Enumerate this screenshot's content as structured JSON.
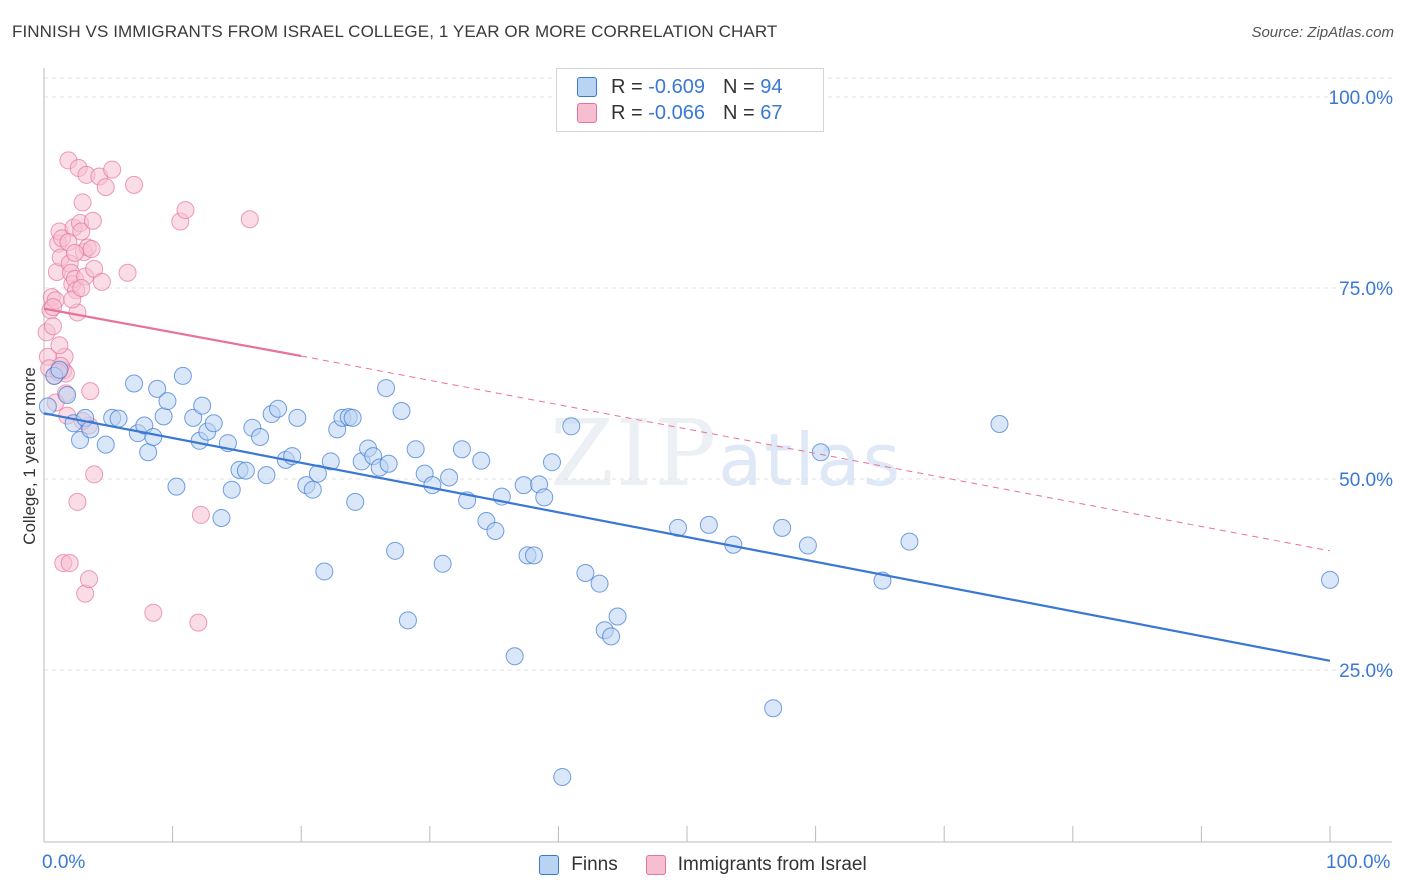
{
  "title": "FINNISH VS IMMIGRANTS FROM ISRAEL COLLEGE, 1 YEAR OR MORE CORRELATION CHART",
  "source": "Source: ZipAtlas.com",
  "watermark": {
    "part1": "ZIP",
    "part2": "atlas"
  },
  "colors": {
    "blue": "#3a78d4",
    "blue_fill": "#b9d3f3",
    "pink": "#e7739a",
    "pink_fill": "#f6bfd1",
    "grid": "#e2e2e2"
  },
  "legend": {
    "rows": [
      {
        "r_label": "R = ",
        "r_value": "-0.609",
        "n_label": "N = ",
        "n_value": "94"
      },
      {
        "r_label": "R = ",
        "r_value": "-0.066",
        "n_label": "N = ",
        "n_value": "67"
      }
    ]
  },
  "bottom_legend": {
    "finns": "Finns",
    "israel": "Immigrants from Israel"
  },
  "chart_data": {
    "type": "scatter",
    "title": "FINNISH VS IMMIGRANTS FROM ISRAEL COLLEGE, 1 YEAR OR MORE CORRELATION CHART",
    "xlabel": "",
    "ylabel": "College, 1 year or more",
    "xlim": [
      0,
      100
    ],
    "ylim": [
      0,
      102
    ],
    "x_tick_labels": [
      "0.0%",
      "100.0%"
    ],
    "y_ticks": [
      25,
      50,
      75,
      100
    ],
    "y_tick_labels": [
      "25.0%",
      "50.0%",
      "75.0%",
      "100.0%"
    ],
    "grid": true,
    "series": [
      {
        "name": "Finns",
        "color": "#3a78d4",
        "trend": {
          "x0": 0,
          "y0": 58.6,
          "x1": 100,
          "y1": 26.2
        },
        "points": [
          [
            0.3,
            59.5
          ],
          [
            0.8,
            63.5
          ],
          [
            1.2,
            64.3
          ],
          [
            1.8,
            61.0
          ],
          [
            2.3,
            57.3
          ],
          [
            2.8,
            55.1
          ],
          [
            3.2,
            58.0
          ],
          [
            3.6,
            56.5
          ],
          [
            4.8,
            54.5
          ],
          [
            5.3,
            58.0
          ],
          [
            5.8,
            57.9
          ],
          [
            7.0,
            62.5
          ],
          [
            7.3,
            56.0
          ],
          [
            7.8,
            57.0
          ],
          [
            8.1,
            53.5
          ],
          [
            8.5,
            55.5
          ],
          [
            8.8,
            61.8
          ],
          [
            9.3,
            58.2
          ],
          [
            9.6,
            60.2
          ],
          [
            10.3,
            49.0
          ],
          [
            10.8,
            63.5
          ],
          [
            11.6,
            58.0
          ],
          [
            12.1,
            55.0
          ],
          [
            12.3,
            59.6
          ],
          [
            12.7,
            56.2
          ],
          [
            13.2,
            57.3
          ],
          [
            13.8,
            44.9
          ],
          [
            14.3,
            54.7
          ],
          [
            14.6,
            48.6
          ],
          [
            15.2,
            51.2
          ],
          [
            15.7,
            51.1
          ],
          [
            16.2,
            56.7
          ],
          [
            16.8,
            55.5
          ],
          [
            17.3,
            50.5
          ],
          [
            17.7,
            58.5
          ],
          [
            18.2,
            59.2
          ],
          [
            18.8,
            52.5
          ],
          [
            19.3,
            53.0
          ],
          [
            19.7,
            58.0
          ],
          [
            20.4,
            49.2
          ],
          [
            20.9,
            48.6
          ],
          [
            21.3,
            50.7
          ],
          [
            21.8,
            37.9
          ],
          [
            22.3,
            52.3
          ],
          [
            22.8,
            56.5
          ],
          [
            23.2,
            58.0
          ],
          [
            23.7,
            58.1
          ],
          [
            24.2,
            47.0
          ],
          [
            24.7,
            52.3
          ],
          [
            25.2,
            54.0
          ],
          [
            25.6,
            53.0
          ],
          [
            26.1,
            51.5
          ],
          [
            26.6,
            61.9
          ],
          [
            27.3,
            40.6
          ],
          [
            27.8,
            58.9
          ],
          [
            28.3,
            31.5
          ],
          [
            28.9,
            53.9
          ],
          [
            29.6,
            50.7
          ],
          [
            30.2,
            49.2
          ],
          [
            31.0,
            38.9
          ],
          [
            31.5,
            50.2
          ],
          [
            32.5,
            53.9
          ],
          [
            32.9,
            47.2
          ],
          [
            34.0,
            52.4
          ],
          [
            34.4,
            44.5
          ],
          [
            35.1,
            43.2
          ],
          [
            35.6,
            47.7
          ],
          [
            36.6,
            26.8
          ],
          [
            37.3,
            49.2
          ],
          [
            37.6,
            40.0
          ],
          [
            38.1,
            40.0
          ],
          [
            38.5,
            49.3
          ],
          [
            38.9,
            47.6
          ],
          [
            39.5,
            52.2
          ],
          [
            40.3,
            11.0
          ],
          [
            41.0,
            56.9
          ],
          [
            42.1,
            37.7
          ],
          [
            43.2,
            36.3
          ],
          [
            43.6,
            30.2
          ],
          [
            44.1,
            29.4
          ],
          [
            44.6,
            32.0
          ],
          [
            49.3,
            43.6
          ],
          [
            51.7,
            44.0
          ],
          [
            53.6,
            41.4
          ],
          [
            56.7,
            20.0
          ],
          [
            57.4,
            43.6
          ],
          [
            59.4,
            41.3
          ],
          [
            60.4,
            53.5
          ],
          [
            65.2,
            36.7
          ],
          [
            67.3,
            41.8
          ],
          [
            74.3,
            57.2
          ],
          [
            100.0,
            36.8
          ],
          [
            24.0,
            58.0
          ],
          [
            26.8,
            52.0
          ]
        ]
      },
      {
        "name": "Immigrants from Israel",
        "color": "#e7739a",
        "trend": {
          "x0": 0,
          "y0": 72.3,
          "x1": 20,
          "y1": 66.1,
          "dash_x1": 100,
          "dash_y1": 40.6
        },
        "points": [
          [
            0.2,
            69.2
          ],
          [
            0.3,
            66.0
          ],
          [
            0.5,
            72.1
          ],
          [
            0.6,
            73.8
          ],
          [
            0.7,
            70.0
          ],
          [
            0.8,
            63.5
          ],
          [
            0.9,
            73.4
          ],
          [
            1.0,
            77.1
          ],
          [
            1.1,
            80.8
          ],
          [
            1.2,
            82.4
          ],
          [
            1.3,
            79.0
          ],
          [
            1.4,
            81.5
          ],
          [
            1.5,
            64.2
          ],
          [
            1.6,
            66.0
          ],
          [
            1.7,
            63.8
          ],
          [
            1.8,
            58.3
          ],
          [
            1.9,
            91.7
          ],
          [
            2.0,
            78.2
          ],
          [
            2.1,
            77.0
          ],
          [
            2.2,
            75.5
          ],
          [
            2.3,
            82.9
          ],
          [
            2.4,
            76.2
          ],
          [
            2.5,
            74.7
          ],
          [
            2.6,
            71.8
          ],
          [
            2.7,
            90.7
          ],
          [
            2.8,
            83.5
          ],
          [
            2.9,
            82.4
          ],
          [
            3.0,
            86.2
          ],
          [
            3.1,
            79.7
          ],
          [
            3.2,
            76.5
          ],
          [
            3.3,
            89.8
          ],
          [
            3.4,
            80.3
          ],
          [
            3.5,
            57.0
          ],
          [
            3.6,
            61.5
          ],
          [
            3.7,
            80.1
          ],
          [
            3.8,
            83.8
          ],
          [
            3.9,
            77.5
          ],
          [
            4.3,
            89.6
          ],
          [
            4.5,
            75.8
          ],
          [
            4.8,
            88.2
          ],
          [
            5.3,
            90.5
          ],
          [
            6.5,
            77.0
          ],
          [
            7.0,
            88.5
          ],
          [
            8.5,
            32.5
          ],
          [
            10.6,
            83.7
          ],
          [
            11.0,
            85.2
          ],
          [
            12.0,
            31.2
          ],
          [
            12.2,
            45.3
          ],
          [
            1.5,
            39.0
          ],
          [
            2.0,
            39.0
          ],
          [
            2.6,
            47.0
          ],
          [
            3.2,
            35.0
          ],
          [
            3.5,
            36.9
          ],
          [
            3.9,
            50.6
          ],
          [
            1.3,
            64.8
          ],
          [
            0.4,
            64.5
          ],
          [
            1.7,
            61.2
          ],
          [
            0.7,
            72.5
          ],
          [
            1.2,
            67.5
          ],
          [
            2.2,
            73.5
          ],
          [
            2.9,
            75.0
          ],
          [
            1.9,
            81.0
          ],
          [
            2.4,
            79.6
          ],
          [
            0.9,
            60.0
          ],
          [
            16.0,
            84.0
          ],
          [
            1.1,
            64.0
          ],
          [
            3.0,
            57.6
          ]
        ]
      }
    ]
  }
}
